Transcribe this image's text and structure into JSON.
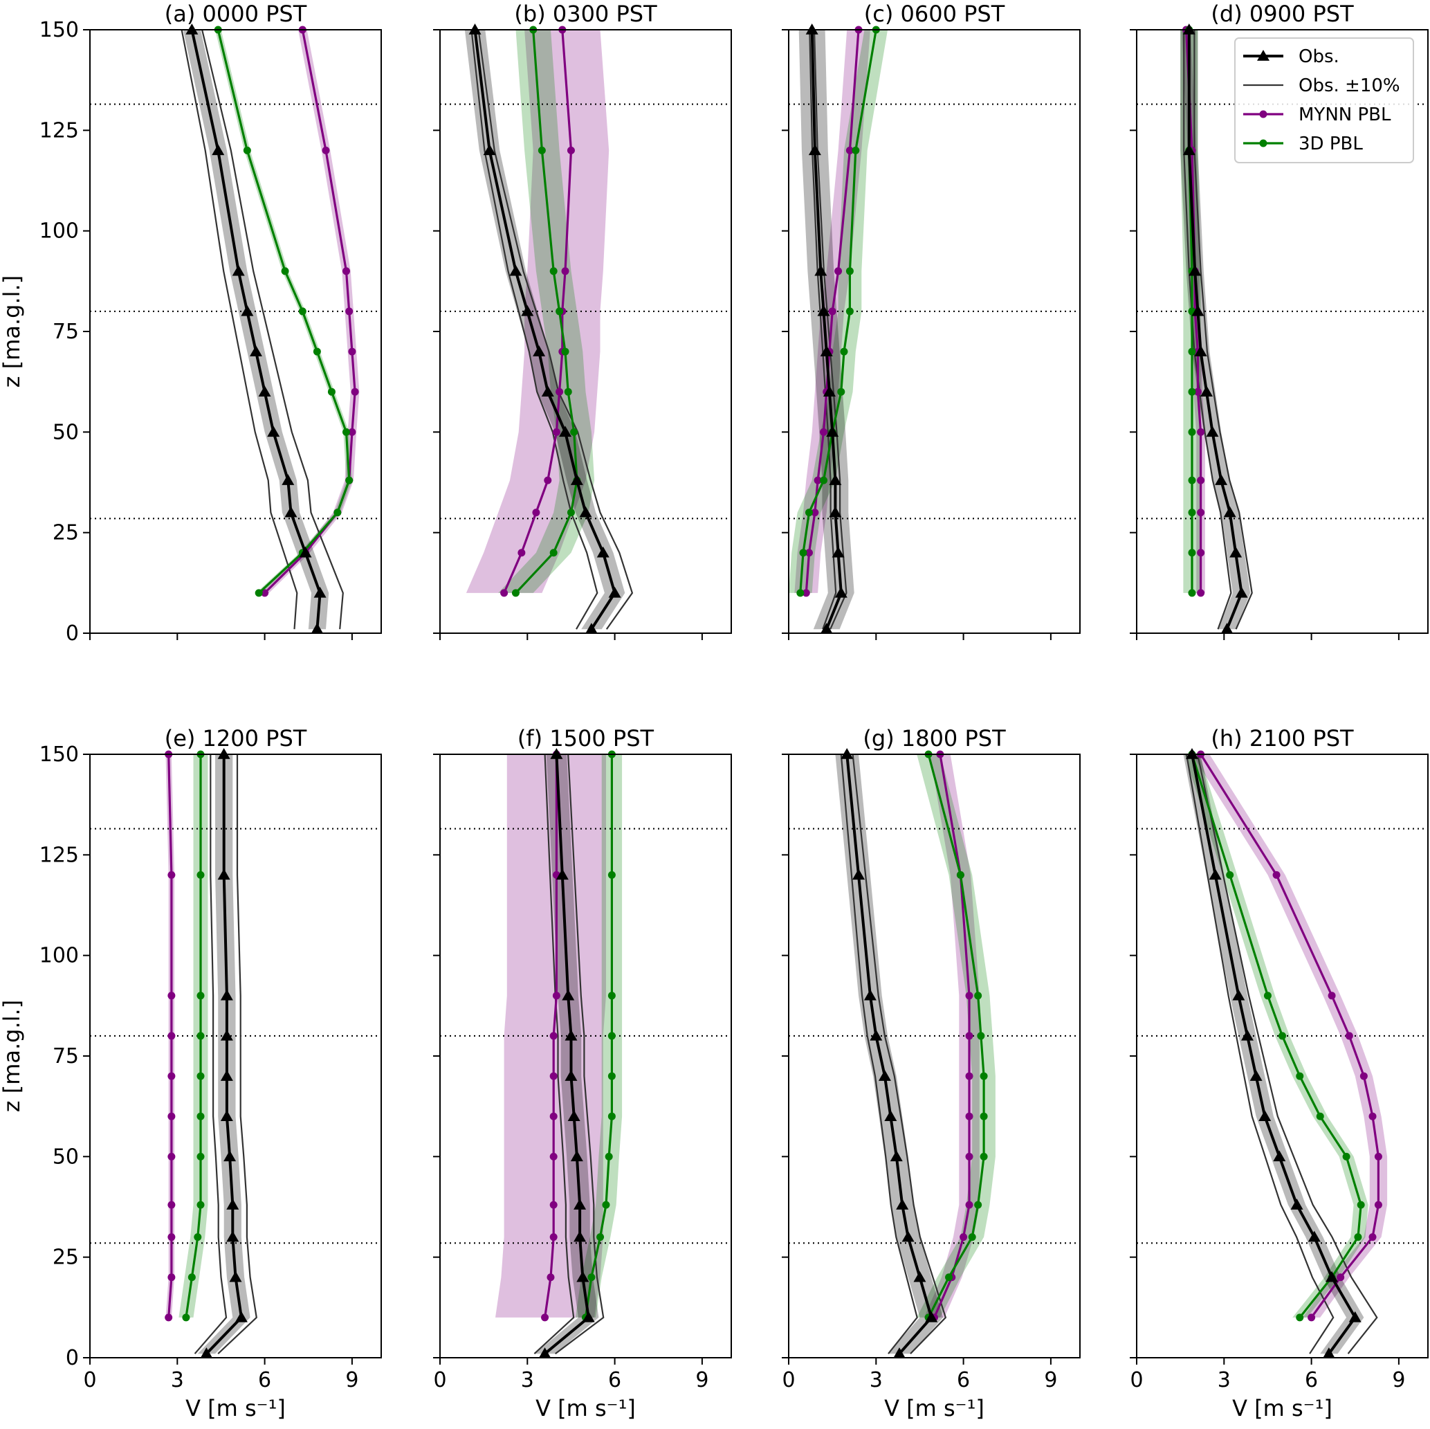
{
  "chart_data": {
    "type": "line",
    "xlabel": "V [m s⁻¹]",
    "ylabel": "z [ma.g.l.]",
    "xlim": [
      0,
      10
    ],
    "ylim": [
      0,
      150
    ],
    "xticks": [
      0,
      3,
      6,
      9
    ],
    "yticks": [
      0,
      25,
      50,
      75,
      100,
      125,
      150
    ],
    "reference_lines_z": [
      28.5,
      80,
      131.5
    ],
    "legend": {
      "position": "top-right of panel (d)",
      "entries": [
        {
          "label": "Obs.",
          "color": "#000000",
          "marker": "triangle"
        },
        {
          "label": "Obs. ±10%",
          "color": "#333333",
          "marker": "none"
        },
        {
          "label": "MYNN PBL",
          "color": "#800080",
          "marker": "circle"
        },
        {
          "label": "3D PBL",
          "color": "#008000",
          "marker": "circle"
        }
      ]
    },
    "colors": {
      "obs": "#000000",
      "obs_band": "#333333",
      "mynn": "#800080",
      "pbl3d": "#008000"
    },
    "z_obs": [
      1,
      10,
      20,
      30,
      38,
      50,
      60,
      70,
      80,
      90,
      120,
      150
    ],
    "z_model": [
      10,
      20,
      30,
      38,
      50,
      60,
      70,
      80,
      90,
      120,
      150
    ],
    "panels": [
      {
        "title": "(a) 0000 PST",
        "obs": [
          7.8,
          7.9,
          7.4,
          6.9,
          6.8,
          6.3,
          6.0,
          5.7,
          5.4,
          5.1,
          4.4,
          3.5
        ],
        "obs_spread": 0.3,
        "mynn": [
          6.0,
          7.4,
          8.5,
          8.9,
          9.0,
          9.1,
          9.0,
          8.9,
          8.8,
          8.1,
          7.3
        ],
        "mynn_spread": 0.15,
        "pbl3d": [
          5.8,
          7.3,
          8.5,
          8.9,
          8.8,
          8.3,
          7.8,
          7.3,
          6.7,
          5.4,
          4.4
        ],
        "pbl3d_spread": 0.1
      },
      {
        "title": "(b) 0300 PST",
        "obs": [
          5.2,
          6.0,
          5.6,
          5.0,
          4.7,
          4.3,
          3.7,
          3.4,
          3.0,
          2.6,
          1.7,
          1.2
        ],
        "obs_spread": 0.35,
        "mynn": [
          2.2,
          2.8,
          3.3,
          3.7,
          4.0,
          4.1,
          4.2,
          4.2,
          4.3,
          4.5,
          4.2
        ],
        "mynn_spread": 1.3,
        "pbl3d": [
          2.6,
          3.9,
          4.5,
          4.7,
          4.6,
          4.4,
          4.3,
          4.1,
          3.9,
          3.5,
          3.2
        ],
        "pbl3d_spread": 0.6
      },
      {
        "title": "(c) 0600 PST",
        "obs": [
          1.3,
          1.8,
          1.7,
          1.6,
          1.6,
          1.5,
          1.4,
          1.3,
          1.2,
          1.1,
          0.9,
          0.8
        ],
        "obs_spread": 0.45,
        "mynn": [
          0.6,
          0.7,
          0.9,
          1.0,
          1.2,
          1.3,
          1.4,
          1.5,
          1.7,
          2.1,
          2.4
        ],
        "mynn_spread": 0.4,
        "pbl3d": [
          0.4,
          0.5,
          0.7,
          1.2,
          1.5,
          1.8,
          1.9,
          2.1,
          2.1,
          2.3,
          3.0
        ],
        "pbl3d_spread": 0.4
      },
      {
        "title": "(d) 0900 PST",
        "obs": [
          3.1,
          3.6,
          3.4,
          3.2,
          2.9,
          2.6,
          2.4,
          2.2,
          2.1,
          2.0,
          1.8,
          1.8
        ],
        "obs_spread": 0.3,
        "mynn": [
          2.2,
          2.2,
          2.2,
          2.2,
          2.2,
          2.1,
          2.1,
          2.0,
          2.0,
          1.9,
          1.7
        ],
        "mynn_spread": 0.15,
        "pbl3d": [
          1.9,
          1.9,
          1.9,
          1.9,
          1.9,
          1.9,
          1.9,
          1.9,
          1.9,
          1.8,
          1.8
        ],
        "pbl3d_spread": 0.3
      },
      {
        "title": "(e) 1200 PST",
        "obs": [
          4.0,
          5.2,
          5.0,
          4.9,
          4.9,
          4.8,
          4.7,
          4.7,
          4.7,
          4.7,
          4.6,
          4.6
        ],
        "obs_spread": 0.3,
        "mynn": [
          2.7,
          2.8,
          2.8,
          2.8,
          2.8,
          2.8,
          2.8,
          2.8,
          2.8,
          2.8,
          2.7
        ],
        "mynn_spread": 0.1,
        "pbl3d": [
          3.3,
          3.5,
          3.7,
          3.8,
          3.8,
          3.8,
          3.8,
          3.8,
          3.8,
          3.8,
          3.8
        ],
        "pbl3d_spread": 0.25
      },
      {
        "title": "(f) 1500 PST",
        "obs": [
          3.6,
          5.1,
          4.9,
          4.8,
          4.8,
          4.7,
          4.6,
          4.5,
          4.5,
          4.4,
          4.2,
          4.0
        ],
        "obs_spread": 0.35,
        "mynn": [
          3.6,
          3.8,
          3.9,
          3.9,
          3.9,
          3.9,
          3.9,
          3.9,
          4.0,
          4.0,
          4.0
        ],
        "mynn_spread": 1.7,
        "pbl3d": [
          5.0,
          5.2,
          5.5,
          5.7,
          5.8,
          5.9,
          5.9,
          5.9,
          5.9,
          5.9,
          5.9
        ],
        "pbl3d_spread": 0.35
      },
      {
        "title": "(g) 1800 PST",
        "obs": [
          3.8,
          4.9,
          4.5,
          4.1,
          3.9,
          3.7,
          3.5,
          3.3,
          3.0,
          2.8,
          2.4,
          2.0
        ],
        "obs_spread": 0.4,
        "mynn": [
          5.0,
          5.6,
          6.0,
          6.2,
          6.2,
          6.2,
          6.2,
          6.2,
          6.2,
          5.9,
          5.2
        ],
        "mynn_spread": 0.35,
        "pbl3d": [
          4.8,
          5.5,
          6.3,
          6.5,
          6.7,
          6.7,
          6.7,
          6.6,
          6.5,
          5.9,
          4.8
        ],
        "pbl3d_spread": 0.4
      },
      {
        "title": "(h) 2100 PST",
        "obs": [
          6.6,
          7.5,
          6.7,
          6.1,
          5.5,
          4.9,
          4.4,
          4.1,
          3.8,
          3.5,
          2.7,
          1.9
        ],
        "obs_spread": 0.3,
        "mynn": [
          6.0,
          7.0,
          8.1,
          8.3,
          8.3,
          8.1,
          7.8,
          7.3,
          6.7,
          4.8,
          2.2
        ],
        "mynn_spread": 0.3,
        "pbl3d": [
          5.6,
          6.7,
          7.6,
          7.7,
          7.2,
          6.3,
          5.6,
          5.0,
          4.5,
          3.2,
          1.9
        ],
        "pbl3d_spread": 0.25
      }
    ]
  }
}
